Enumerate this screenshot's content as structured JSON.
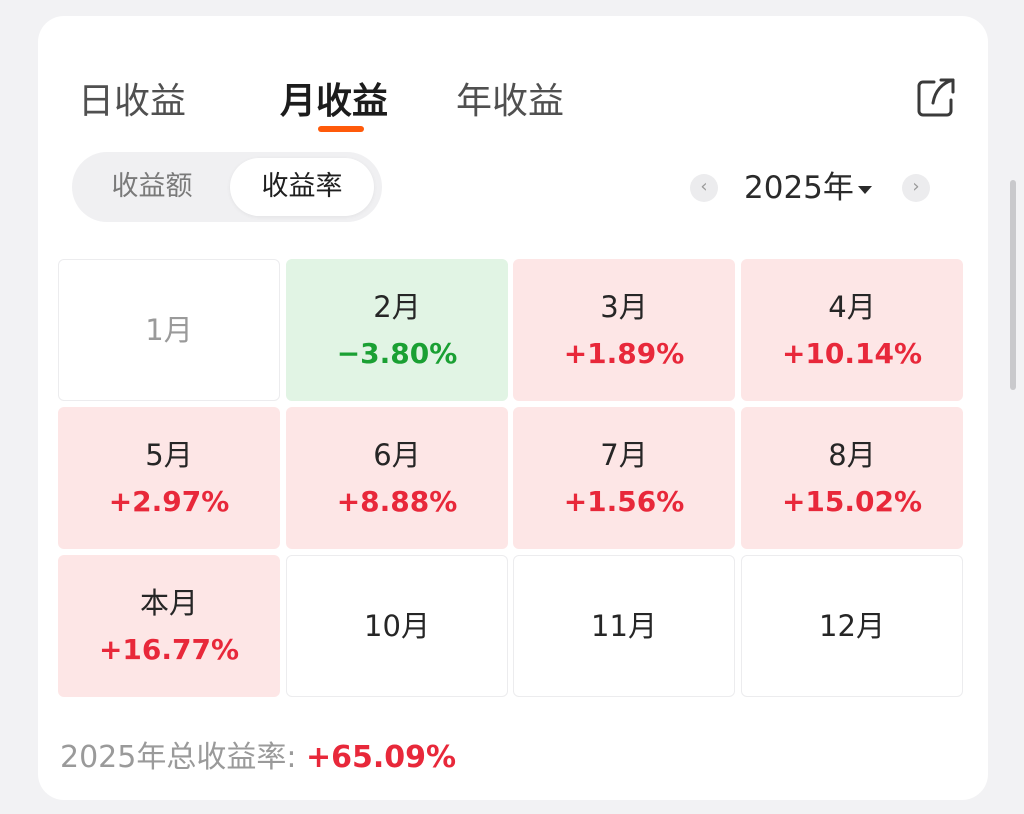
{
  "tabs": [
    {
      "label": "日收益",
      "active": false
    },
    {
      "label": "月收益",
      "active": true
    },
    {
      "label": "年收益",
      "active": false
    }
  ],
  "share_icon": "share-icon",
  "toggle": {
    "amount_label": "收益额",
    "rate_label": "收益率",
    "selected": "rate"
  },
  "year_nav": {
    "prev": "‹",
    "year": "2025年",
    "next": "›"
  },
  "months": [
    {
      "month": "1月",
      "value": "",
      "status": "none"
    },
    {
      "month": "2月",
      "value": "−3.80%",
      "status": "down"
    },
    {
      "month": "3月",
      "value": "+1.89%",
      "status": "up"
    },
    {
      "month": "4月",
      "value": "+10.14%",
      "status": "up"
    },
    {
      "month": "5月",
      "value": "+2.97%",
      "status": "up"
    },
    {
      "month": "6月",
      "value": "+8.88%",
      "status": "up"
    },
    {
      "month": "7月",
      "value": "+1.56%",
      "status": "up"
    },
    {
      "month": "8月",
      "value": "+15.02%",
      "status": "up"
    },
    {
      "month": "本月",
      "value": "+16.77%",
      "status": "up"
    },
    {
      "month": "10月",
      "value": "",
      "status": "none"
    },
    {
      "month": "11月",
      "value": "",
      "status": "none"
    },
    {
      "month": "12月",
      "value": "",
      "status": "none"
    }
  ],
  "summary": {
    "label": "2025年总收益率: ",
    "value": "+65.09%"
  },
  "colors": {
    "accent": "#ff5a0a",
    "gain": "#e8283a",
    "loss": "#1aa033",
    "gain_bg": "#fde6e6",
    "loss_bg": "#e1f4e4"
  }
}
